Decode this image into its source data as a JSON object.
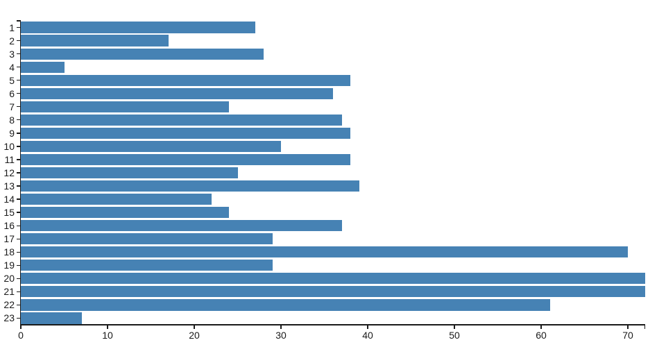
{
  "chart_data": {
    "type": "bar",
    "orientation": "horizontal",
    "title": "",
    "xlabel": "",
    "ylabel": "",
    "categories": [
      "1",
      "2",
      "3",
      "4",
      "5",
      "6",
      "7",
      "8",
      "9",
      "10",
      "11",
      "12",
      "13",
      "14",
      "15",
      "16",
      "17",
      "18",
      "19",
      "20",
      "21",
      "22",
      "23"
    ],
    "values": [
      27,
      17,
      28,
      5,
      38,
      36,
      24,
      37,
      38,
      30,
      38,
      25,
      39,
      22,
      24,
      37,
      29,
      70,
      29,
      72,
      72,
      61,
      7
    ],
    "x_ticks": [
      0,
      10,
      20,
      30,
      40,
      50,
      60,
      70
    ],
    "xlim": [
      0,
      72
    ],
    "grid": false,
    "legend": null,
    "bar_color": "#4682b4",
    "axis_color": "#1a1a1a",
    "label_color": "#1a1a1a",
    "background_color": "#ffffff"
  }
}
